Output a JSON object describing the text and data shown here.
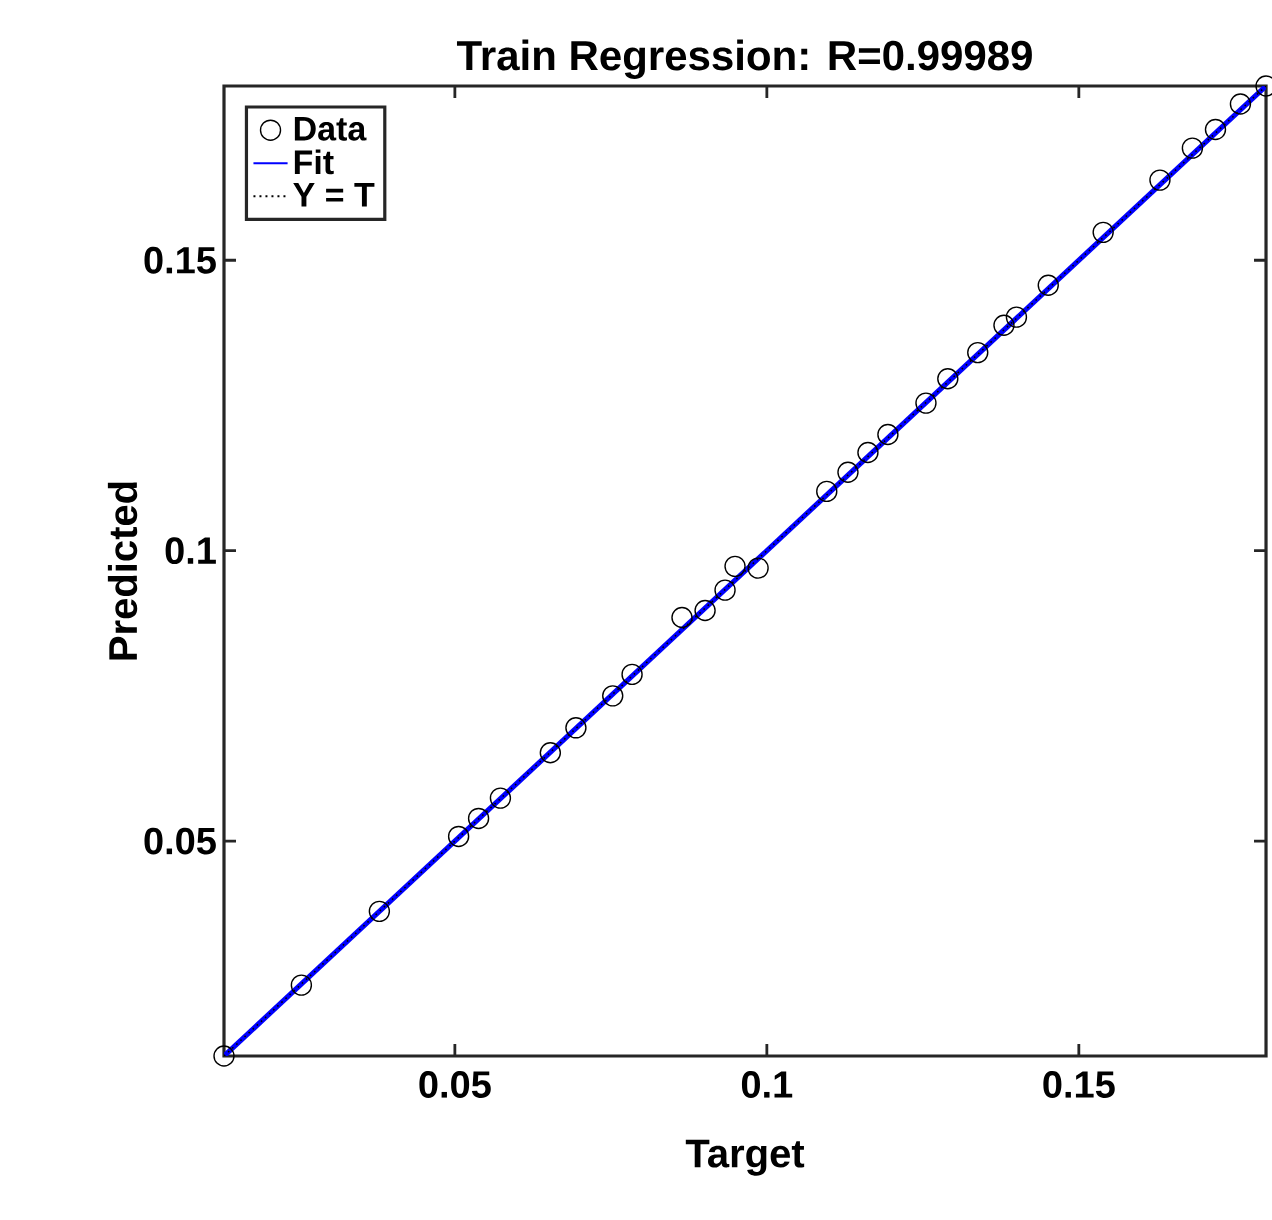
{
  "chart_data": {
    "type": "scatter",
    "title": "Train Regression: R=0.99989",
    "xlabel": "Target",
    "ylabel": "Predicted",
    "xlim": [
      0.013,
      0.18
    ],
    "ylim": [
      0.013,
      0.18
    ],
    "xticks": [
      0.05,
      0.1,
      0.15
    ],
    "yticks": [
      0.05,
      0.1,
      0.15
    ],
    "legend": "top left",
    "series": [
      {
        "name": "Data",
        "marker": "circle",
        "color": "#000000",
        "x": [
          0.013,
          0.0254,
          0.0379,
          0.0506,
          0.0538,
          0.0573,
          0.0653,
          0.0694,
          0.0753,
          0.0784,
          0.0864,
          0.0901,
          0.0933,
          0.0949,
          0.0986,
          0.1096,
          0.113,
          0.1162,
          0.1194,
          0.1255,
          0.129,
          0.1338,
          0.138,
          0.14,
          0.1451,
          0.1539,
          0.163,
          0.1682,
          0.1719,
          0.1759,
          0.18
        ],
        "values": [
          0.013,
          0.0252,
          0.0379,
          0.0508,
          0.0539,
          0.0574,
          0.0652,
          0.0695,
          0.075,
          0.0787,
          0.0885,
          0.0897,
          0.0932,
          0.0973,
          0.097,
          0.1102,
          0.1135,
          0.1169,
          0.12,
          0.1254,
          0.1296,
          0.1341,
          0.1388,
          0.1402,
          0.1457,
          0.1548,
          0.1638,
          0.1693,
          0.1725,
          0.1769,
          0.18
        ]
      },
      {
        "name": "Fit",
        "type": "line",
        "color": "#0000ff",
        "line_style": "solid",
        "x": [
          0.013,
          0.18
        ],
        "values": [
          0.013,
          0.18
        ]
      },
      {
        "name": "Y = T",
        "type": "line",
        "color": "#000000",
        "line_style": "dotted",
        "x": [
          0.013,
          0.18
        ],
        "values": [
          0.013,
          0.18
        ]
      }
    ]
  }
}
